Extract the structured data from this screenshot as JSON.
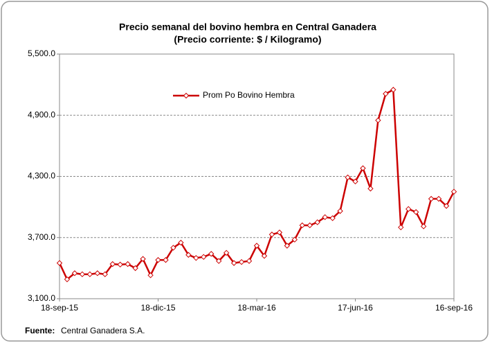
{
  "chart_data": {
    "type": "line",
    "title": "Precio semanal del bovino  hembra en Central Ganadera",
    "subtitle": "(Precio corriente: $ / Kilogramo)",
    "categories": [
      "18-sep-15",
      null,
      null,
      null,
      null,
      null,
      null,
      null,
      null,
      null,
      null,
      null,
      null,
      "18-dic-15",
      null,
      null,
      null,
      null,
      null,
      null,
      null,
      null,
      null,
      null,
      null,
      null,
      "18-mar-16",
      null,
      null,
      null,
      null,
      null,
      null,
      null,
      null,
      null,
      null,
      null,
      null,
      "17-jun-16",
      null,
      null,
      null,
      null,
      null,
      null,
      null,
      null,
      null,
      null,
      null,
      null,
      "16-sep-16"
    ],
    "series": [
      {
        "name": "Prom Po Bovino Hembra",
        "color": "#cc0000",
        "values": [
          3450,
          3290,
          3350,
          3340,
          3340,
          3350,
          3340,
          3440,
          3435,
          3440,
          3400,
          3490,
          3330,
          3480,
          3480,
          3600,
          3650,
          3530,
          3500,
          3510,
          3540,
          3470,
          3550,
          3450,
          3460,
          3470,
          3620,
          3520,
          3730,
          3750,
          3620,
          3680,
          3820,
          3820,
          3850,
          3900,
          3890,
          3960,
          4290,
          4250,
          4380,
          4180,
          4850,
          5110,
          5150,
          3800,
          3980,
          3950,
          3810,
          4080,
          4080,
          4010,
          4150
        ]
      }
    ],
    "ylim": [
      3100,
      5500
    ],
    "yticks": [
      {
        "value": 3100,
        "label": "3,100.0"
      },
      {
        "value": 3700,
        "label": "3,700.0"
      },
      {
        "value": 4300,
        "label": "4,300.0"
      },
      {
        "value": 4900,
        "label": "4,900.0"
      },
      {
        "value": 5500,
        "label": "5,500.0"
      }
    ],
    "grid": true
  },
  "source": {
    "label": "Fuente:",
    "text": "Central Ganadera S.A."
  }
}
